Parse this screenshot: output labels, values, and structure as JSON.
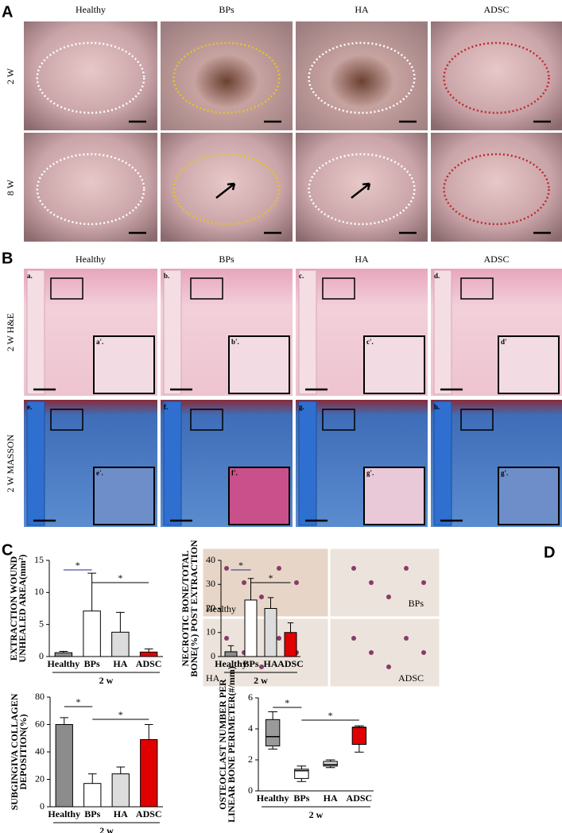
{
  "panel_labels": [
    "A",
    "B",
    "C",
    "D"
  ],
  "panel_a": {
    "columns": [
      "Healthy",
      "BPs",
      "HA",
      "ADSC"
    ],
    "rows": [
      "2 W",
      "8 W"
    ]
  },
  "panel_b": {
    "columns": [
      "Healthy",
      "BPs",
      "HA",
      "ADSC"
    ],
    "rows": [
      "2 W  H&E",
      "2 W  MASSON"
    ],
    "image_labels": [
      "a.",
      "b.",
      "c.",
      "d.",
      "e.",
      "f.",
      "g.",
      "h."
    ],
    "inset_labels": [
      "a'.",
      "b'.",
      "c'.",
      "d'",
      "e'.",
      "f'.",
      "g'.",
      "g'."
    ]
  },
  "panel_d": {
    "image_labels": [
      "Healthy",
      "BPs",
      "HA",
      "ADSC"
    ]
  },
  "chart_data": [
    {
      "type": "bar",
      "ylabel": [
        "EXTRACTION WOUND",
        "UNHEALED AREA(mm²)"
      ],
      "categories": [
        "Healthy",
        "BPs",
        "HA",
        "ADSC"
      ],
      "values": [
        0.6,
        7.1,
        3.8,
        0.7
      ],
      "errors": [
        0.2,
        5.9,
        3.1,
        0.5
      ],
      "colors": [
        "#8c8c8c",
        "#ffffff",
        "#dcdcdc",
        "#e00000"
      ],
      "ylim": [
        0,
        15
      ],
      "yticks": [
        0,
        5,
        10,
        15
      ],
      "group_label": "2 w",
      "significance": [
        {
          "label": "*",
          "from": 0,
          "to": 1,
          "color": "#1f2a8c"
        },
        {
          "label": "*",
          "from": 1,
          "to": 3,
          "color": "#000000"
        }
      ]
    },
    {
      "type": "bar",
      "ylabel": [
        "NECROTIC BONE/TOTAL",
        "BONE(%) POST EXTRACTION"
      ],
      "categories": [
        "Healthy",
        "BPs",
        "HA",
        "ADSC"
      ],
      "values": [
        2,
        23.5,
        20,
        10
      ],
      "errors": [
        2.5,
        9,
        4.5,
        4
      ],
      "colors": [
        "#8c8c8c",
        "#ffffff",
        "#dcdcdc",
        "#e00000"
      ],
      "ylim": [
        0,
        40
      ],
      "yticks": [
        0,
        10,
        20,
        30,
        40
      ],
      "group_label": "2 w",
      "significance": [
        {
          "label": "*",
          "from": 0,
          "to": 1,
          "color": "#1f2a8c"
        },
        {
          "label": "*",
          "from": 1,
          "to": 3,
          "color": "#000000"
        }
      ]
    },
    {
      "type": "bar",
      "ylabel": [
        "SUBGINGIVA COLLAGEN",
        "DEPOSITION(%)"
      ],
      "categories": [
        "Healthy",
        "BPs",
        "HA",
        "ADSC"
      ],
      "values": [
        60,
        17,
        24,
        49
      ],
      "errors": [
        5,
        7,
        5,
        11
      ],
      "colors": [
        "#8c8c8c",
        "#ffffff",
        "#dcdcdc",
        "#e00000"
      ],
      "ylim": [
        0,
        80
      ],
      "yticks": [
        0,
        20,
        40,
        60,
        80
      ],
      "group_label": "2 w",
      "significance": [
        {
          "label": "*",
          "from": 0,
          "to": 1,
          "color": "#000000"
        },
        {
          "label": "*",
          "from": 1,
          "to": 3,
          "color": "#000000"
        }
      ]
    },
    {
      "type": "box",
      "ylabel": [
        "OSTEOCLAST NUMBER PER",
        "LINEAR BONE PERIMETER(#/mm)"
      ],
      "categories": [
        "Healthy",
        "BPs",
        "HA",
        "ADSC"
      ],
      "min": [
        2.7,
        0.6,
        1.5,
        2.5
      ],
      "q1": [
        2.9,
        0.8,
        1.6,
        3.0
      ],
      "median": [
        3.5,
        1.3,
        1.7,
        4.1
      ],
      "q3": [
        4.6,
        1.4,
        1.9,
        4.1
      ],
      "max": [
        5.1,
        1.6,
        2.0,
        4.2
      ],
      "colors": [
        "#9a9a9a",
        "#ffffff",
        "#dcdcdc",
        "#e00000"
      ],
      "ylim": [
        0,
        6
      ],
      "yticks": [
        0,
        2,
        4,
        6
      ],
      "group_label": "2 w",
      "significance": [
        {
          "label": "*",
          "from": 0,
          "to": 1,
          "color": "#000000"
        },
        {
          "label": "*",
          "from": 1,
          "to": 3,
          "color": "#000000"
        }
      ]
    }
  ]
}
